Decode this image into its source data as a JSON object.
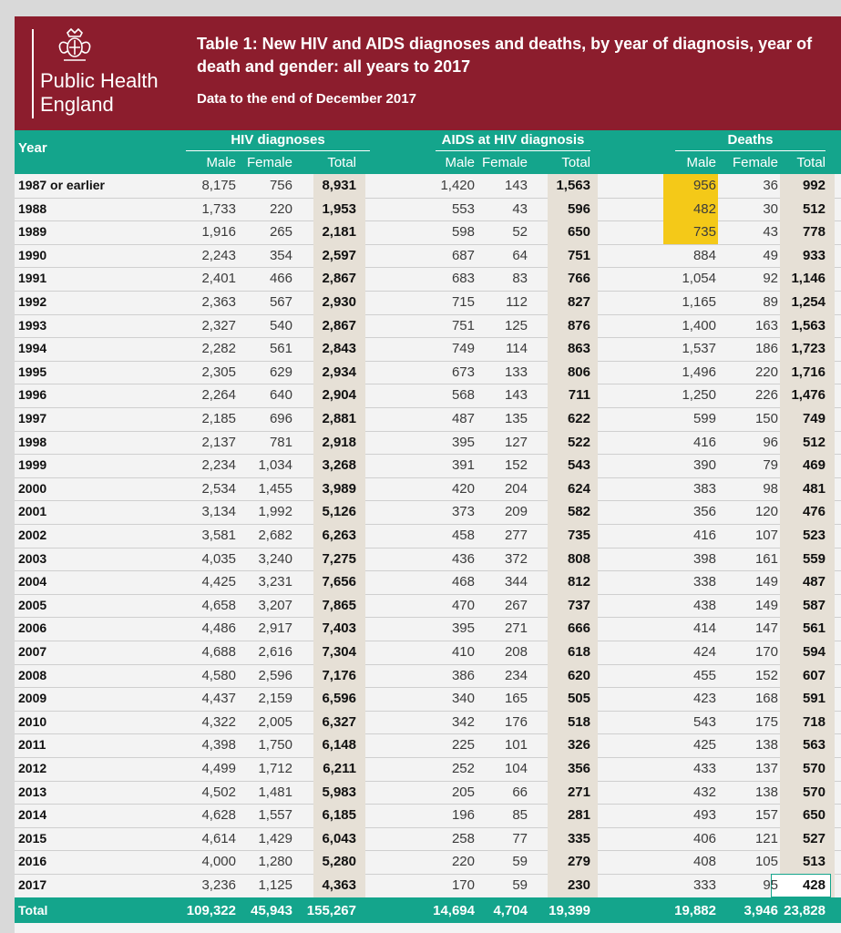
{
  "banner": {
    "org_line1": "Public Health",
    "org_line2": "England",
    "title": "Table 1: New HIV and AIDS diagnoses and deaths, by year of diagnosis, year of death and gender: all years to 2017",
    "subtitle": "Data to the end of December 2017"
  },
  "header": {
    "year_label": "Year",
    "groups": [
      "HIV diagnoses",
      "AIDS at HIV diagnosis",
      "Deaths"
    ],
    "sub": [
      "Male",
      "Female",
      "Total"
    ]
  },
  "rows": [
    [
      "1987 or earlier",
      "8,175",
      "756",
      "8,931",
      "1,420",
      "143",
      "1,563",
      "956",
      "36",
      "992"
    ],
    [
      "1988",
      "1,733",
      "220",
      "1,953",
      "553",
      "43",
      "596",
      "482",
      "30",
      "512"
    ],
    [
      "1989",
      "1,916",
      "265",
      "2,181",
      "598",
      "52",
      "650",
      "735",
      "43",
      "778"
    ],
    [
      "1990",
      "2,243",
      "354",
      "2,597",
      "687",
      "64",
      "751",
      "884",
      "49",
      "933"
    ],
    [
      "1991",
      "2,401",
      "466",
      "2,867",
      "683",
      "83",
      "766",
      "1,054",
      "92",
      "1,146"
    ],
    [
      "1992",
      "2,363",
      "567",
      "2,930",
      "715",
      "112",
      "827",
      "1,165",
      "89",
      "1,254"
    ],
    [
      "1993",
      "2,327",
      "540",
      "2,867",
      "751",
      "125",
      "876",
      "1,400",
      "163",
      "1,563"
    ],
    [
      "1994",
      "2,282",
      "561",
      "2,843",
      "749",
      "114",
      "863",
      "1,537",
      "186",
      "1,723"
    ],
    [
      "1995",
      "2,305",
      "629",
      "2,934",
      "673",
      "133",
      "806",
      "1,496",
      "220",
      "1,716"
    ],
    [
      "1996",
      "2,264",
      "640",
      "2,904",
      "568",
      "143",
      "711",
      "1,250",
      "226",
      "1,476"
    ],
    [
      "1997",
      "2,185",
      "696",
      "2,881",
      "487",
      "135",
      "622",
      "599",
      "150",
      "749"
    ],
    [
      "1998",
      "2,137",
      "781",
      "2,918",
      "395",
      "127",
      "522",
      "416",
      "96",
      "512"
    ],
    [
      "1999",
      "2,234",
      "1,034",
      "3,268",
      "391",
      "152",
      "543",
      "390",
      "79",
      "469"
    ],
    [
      "2000",
      "2,534",
      "1,455",
      "3,989",
      "420",
      "204",
      "624",
      "383",
      "98",
      "481"
    ],
    [
      "2001",
      "3,134",
      "1,992",
      "5,126",
      "373",
      "209",
      "582",
      "356",
      "120",
      "476"
    ],
    [
      "2002",
      "3,581",
      "2,682",
      "6,263",
      "458",
      "277",
      "735",
      "416",
      "107",
      "523"
    ],
    [
      "2003",
      "4,035",
      "3,240",
      "7,275",
      "436",
      "372",
      "808",
      "398",
      "161",
      "559"
    ],
    [
      "2004",
      "4,425",
      "3,231",
      "7,656",
      "468",
      "344",
      "812",
      "338",
      "149",
      "487"
    ],
    [
      "2005",
      "4,658",
      "3,207",
      "7,865",
      "470",
      "267",
      "737",
      "438",
      "149",
      "587"
    ],
    [
      "2006",
      "4,486",
      "2,917",
      "7,403",
      "395",
      "271",
      "666",
      "414",
      "147",
      "561"
    ],
    [
      "2007",
      "4,688",
      "2,616",
      "7,304",
      "410",
      "208",
      "618",
      "424",
      "170",
      "594"
    ],
    [
      "2008",
      "4,580",
      "2,596",
      "7,176",
      "386",
      "234",
      "620",
      "455",
      "152",
      "607"
    ],
    [
      "2009",
      "4,437",
      "2,159",
      "6,596",
      "340",
      "165",
      "505",
      "423",
      "168",
      "591"
    ],
    [
      "2010",
      "4,322",
      "2,005",
      "6,327",
      "342",
      "176",
      "518",
      "543",
      "175",
      "718"
    ],
    [
      "2011",
      "4,398",
      "1,750",
      "6,148",
      "225",
      "101",
      "326",
      "425",
      "138",
      "563"
    ],
    [
      "2012",
      "4,499",
      "1,712",
      "6,211",
      "252",
      "104",
      "356",
      "433",
      "137",
      "570"
    ],
    [
      "2013",
      "4,502",
      "1,481",
      "5,983",
      "205",
      "66",
      "271",
      "432",
      "138",
      "570"
    ],
    [
      "2014",
      "4,628",
      "1,557",
      "6,185",
      "196",
      "85",
      "281",
      "493",
      "157",
      "650"
    ],
    [
      "2015",
      "4,614",
      "1,429",
      "6,043",
      "258",
      "77",
      "335",
      "406",
      "121",
      "527"
    ],
    [
      "2016",
      "4,000",
      "1,280",
      "5,280",
      "220",
      "59",
      "279",
      "408",
      "105",
      "513"
    ],
    [
      "2017",
      "3,236",
      "1,125",
      "4,363",
      "170",
      "59",
      "230",
      "333",
      "95",
      "428"
    ]
  ],
  "total": [
    "Total",
    "109,322",
    "45,943",
    "155,267",
    "14,694",
    "4,704",
    "19,399",
    "19,882",
    "3,946",
    "23,828"
  ],
  "highlighted_cells": [
    "1987 or earlier Deaths Male",
    "1988 Deaths Male",
    "1989 Deaths Male"
  ],
  "colors": {
    "banner": "#8c1d2d",
    "header": "#14a58c",
    "highlight": "#f4c918",
    "total_shade": "#e6e0d6"
  }
}
